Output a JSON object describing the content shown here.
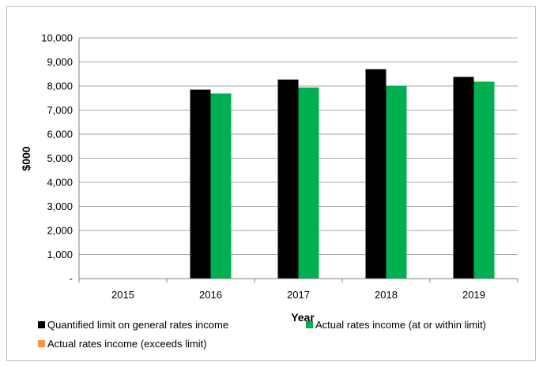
{
  "chart_data": {
    "type": "bar",
    "title": "",
    "xlabel": "Year",
    "ylabel": "$000",
    "categories": [
      "2015",
      "2016",
      "2017",
      "2018",
      "2019"
    ],
    "ylim": [
      0,
      10000
    ],
    "yticks": [
      0,
      1000,
      2000,
      3000,
      4000,
      5000,
      6000,
      7000,
      8000,
      9000,
      10000
    ],
    "ytick_labels": [
      "-",
      "1,000",
      "2,000",
      "3,000",
      "4,000",
      "5,000",
      "6,000",
      "7,000",
      "8,000",
      "9,000",
      "10,000"
    ],
    "grid": true,
    "legend_position": "bottom",
    "series": [
      {
        "name": "Quantified limit on general rates income",
        "color": "#000000",
        "values": [
          null,
          7850,
          8270,
          8700,
          8380
        ]
      },
      {
        "name": "Actual rates income (at or within limit)",
        "color": "#00b050",
        "values": [
          null,
          7690,
          7940,
          8010,
          8180
        ]
      },
      {
        "name": "Actual rates income (exceeds limit)",
        "color": "#f79646",
        "values": [
          null,
          null,
          null,
          null,
          null
        ]
      }
    ]
  }
}
